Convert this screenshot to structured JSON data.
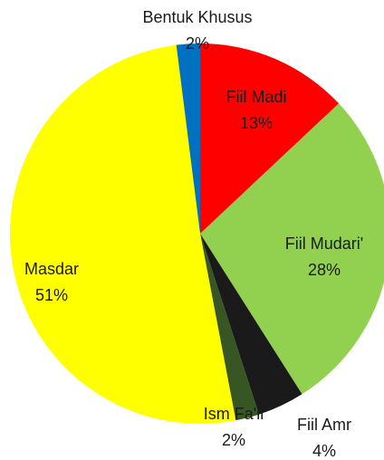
{
  "chart_data": {
    "type": "pie",
    "categories": [
      "Fiil Madi",
      "Fiil Mudari'",
      "Fiil Amr",
      "Ism Fa'il",
      "Masdar",
      "Bentuk Khusus"
    ],
    "values": [
      13,
      28,
      4,
      2,
      51,
      2
    ],
    "value_labels": [
      "13%",
      "28%",
      "4%",
      "2%",
      "51%",
      "2%"
    ],
    "colors": [
      "#ff0000",
      "#92d050",
      "#1a1a1a",
      "#375623",
      "#ffff00",
      "#0070c0"
    ]
  }
}
